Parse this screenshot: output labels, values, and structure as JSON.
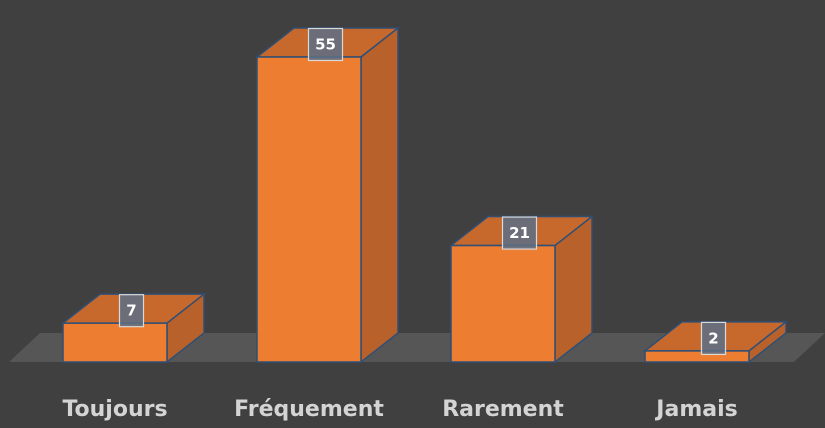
{
  "chart_data": {
    "type": "bar",
    "style": "3d-column",
    "categories": [
      "Toujours",
      "Fréquement",
      "Rarement",
      "Jamais"
    ],
    "values": [
      7,
      55,
      21,
      2
    ],
    "title": "",
    "xlabel": "",
    "ylabel": "",
    "ylim": [
      0,
      55
    ],
    "grid": false,
    "legend": "none",
    "data_labels": true
  },
  "colors": {
    "background": "#404040",
    "floor": "#565656",
    "bar_front": "#ED7D31",
    "bar_side": "#B9612A",
    "bar_top": "#C7692D",
    "bar_edge": "#2F4F75",
    "label_box_fill": "#5A6E86",
    "label_box_stroke": "#D9D9D9",
    "label_text": "#FFFFFF",
    "category_text": "#D4D4D4"
  }
}
